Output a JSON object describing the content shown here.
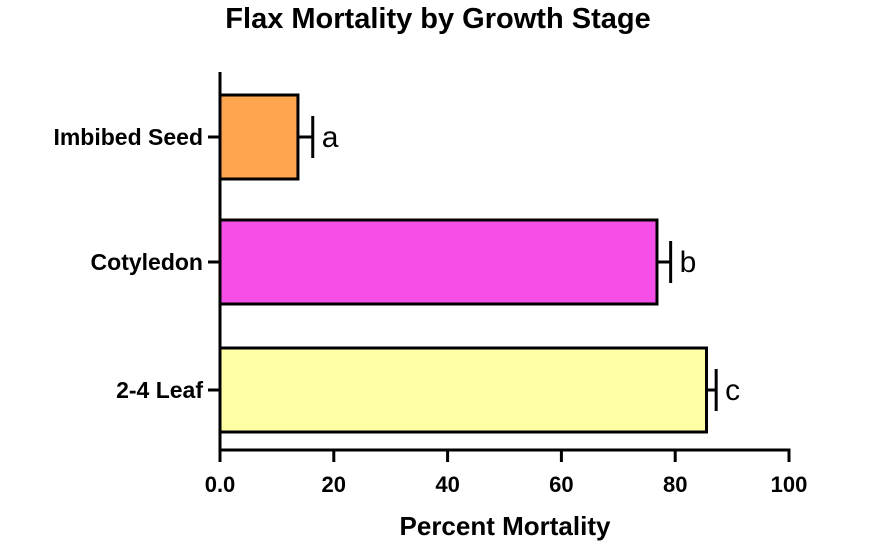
{
  "chart_data": {
    "type": "bar",
    "orientation": "horizontal",
    "title": "Flax Mortality by Growth Stage",
    "xlabel": "Percent Mortality",
    "ylabel": "",
    "xlim": [
      0,
      100
    ],
    "xticks": [
      "0.0",
      "20",
      "40",
      "60",
      "80",
      "100"
    ],
    "grid": false,
    "categories": [
      "Imbibed Seed",
      "Cotyledon",
      "2-4 Leaf"
    ],
    "values": [
      13.7,
      76.8,
      85.5
    ],
    "errors": [
      2.6,
      2.4,
      1.7
    ],
    "significance_letters": [
      "a",
      "b",
      "c"
    ],
    "colors": [
      "#FFA54F",
      "#F54FE8",
      "#FFFFA3"
    ]
  }
}
